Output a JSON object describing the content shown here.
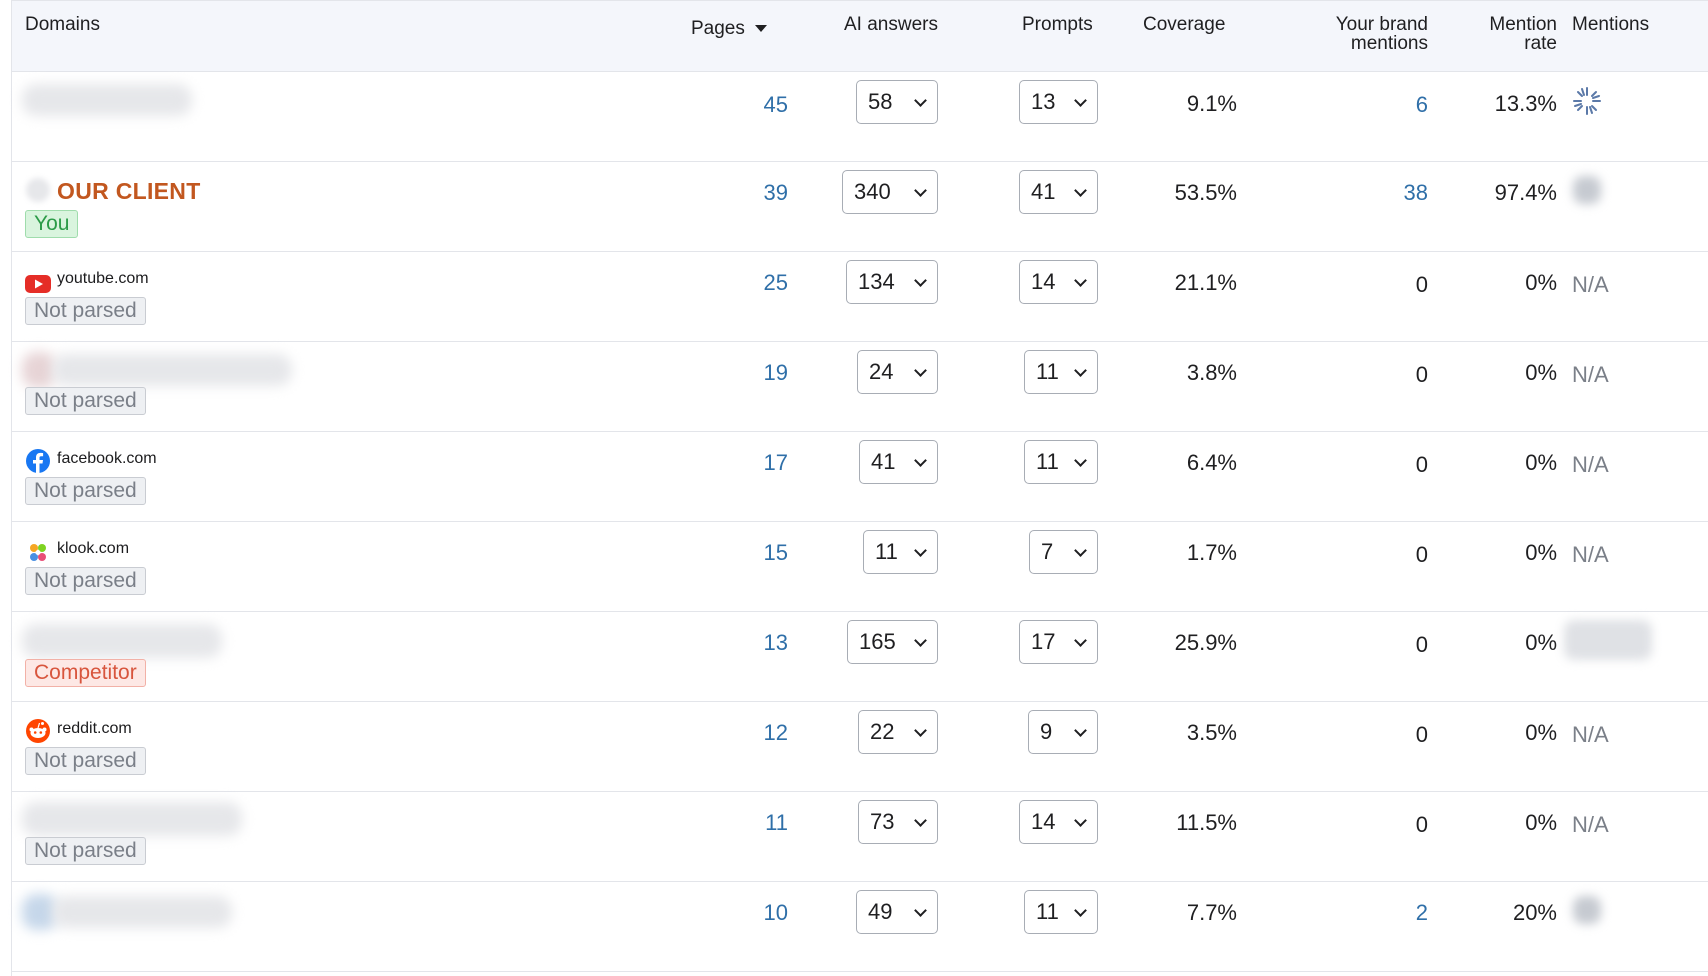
{
  "header": {
    "domains": "Domains",
    "pages": "Pages",
    "ai_answers": "AI answers",
    "prompts": "Prompts",
    "coverage": "Coverage",
    "brand_mentions_1": "Your brand",
    "brand_mentions_2": "mentions",
    "mention_rate_1": "Mention",
    "mention_rate_2": "rate",
    "mentions": "Mentions"
  },
  "icons": {
    "sort": "sort-descending-icon",
    "dropdown": "chevron-down-icon"
  },
  "colors": {
    "link": "#2f6fa8",
    "client": "#c2571f",
    "you_tag": "#2c9b48",
    "competitor_tag": "#d8553d",
    "not_parsed_tag": "#7a7f88"
  },
  "rows": [
    {
      "domain": "",
      "tag": "",
      "pages": "45",
      "ai_answers": "58",
      "prompts": "13",
      "coverage": "9.1%",
      "brand_mentions": "6",
      "mention_rate": "13.3%",
      "mentions": ""
    },
    {
      "domain": "OUR CLIENT",
      "tag": "You",
      "pages": "39",
      "ai_answers": "340",
      "prompts": "41",
      "coverage": "53.5%",
      "brand_mentions": "38",
      "mention_rate": "97.4%",
      "mentions": ""
    },
    {
      "domain": "youtube.com",
      "tag": "Not parsed",
      "pages": "25",
      "ai_answers": "134",
      "prompts": "14",
      "coverage": "21.1%",
      "brand_mentions": "0",
      "mention_rate": "0%",
      "mentions": "N/A"
    },
    {
      "domain": "",
      "tag": "Not parsed",
      "pages": "19",
      "ai_answers": "24",
      "prompts": "11",
      "coverage": "3.8%",
      "brand_mentions": "0",
      "mention_rate": "0%",
      "mentions": "N/A"
    },
    {
      "domain": "facebook.com",
      "tag": "Not parsed",
      "pages": "17",
      "ai_answers": "41",
      "prompts": "11",
      "coverage": "6.4%",
      "brand_mentions": "0",
      "mention_rate": "0%",
      "mentions": "N/A"
    },
    {
      "domain": "klook.com",
      "tag": "Not parsed",
      "pages": "15",
      "ai_answers": "11",
      "prompts": "7",
      "coverage": "1.7%",
      "brand_mentions": "0",
      "mention_rate": "0%",
      "mentions": "N/A"
    },
    {
      "domain": "",
      "tag": "Competitor",
      "pages": "13",
      "ai_answers": "165",
      "prompts": "17",
      "coverage": "25.9%",
      "brand_mentions": "0",
      "mention_rate": "0%",
      "mentions": ""
    },
    {
      "domain": "reddit.com",
      "tag": "Not parsed",
      "pages": "12",
      "ai_answers": "22",
      "prompts": "9",
      "coverage": "3.5%",
      "brand_mentions": "0",
      "mention_rate": "0%",
      "mentions": "N/A"
    },
    {
      "domain": "",
      "tag": "Not parsed",
      "pages": "11",
      "ai_answers": "73",
      "prompts": "14",
      "coverage": "11.5%",
      "brand_mentions": "0",
      "mention_rate": "0%",
      "mentions": "N/A"
    },
    {
      "domain": "",
      "tag": "",
      "pages": "10",
      "ai_answers": "49",
      "prompts": "11",
      "coverage": "7.7%",
      "brand_mentions": "2",
      "mention_rate": "20%",
      "mentions": ""
    }
  ]
}
